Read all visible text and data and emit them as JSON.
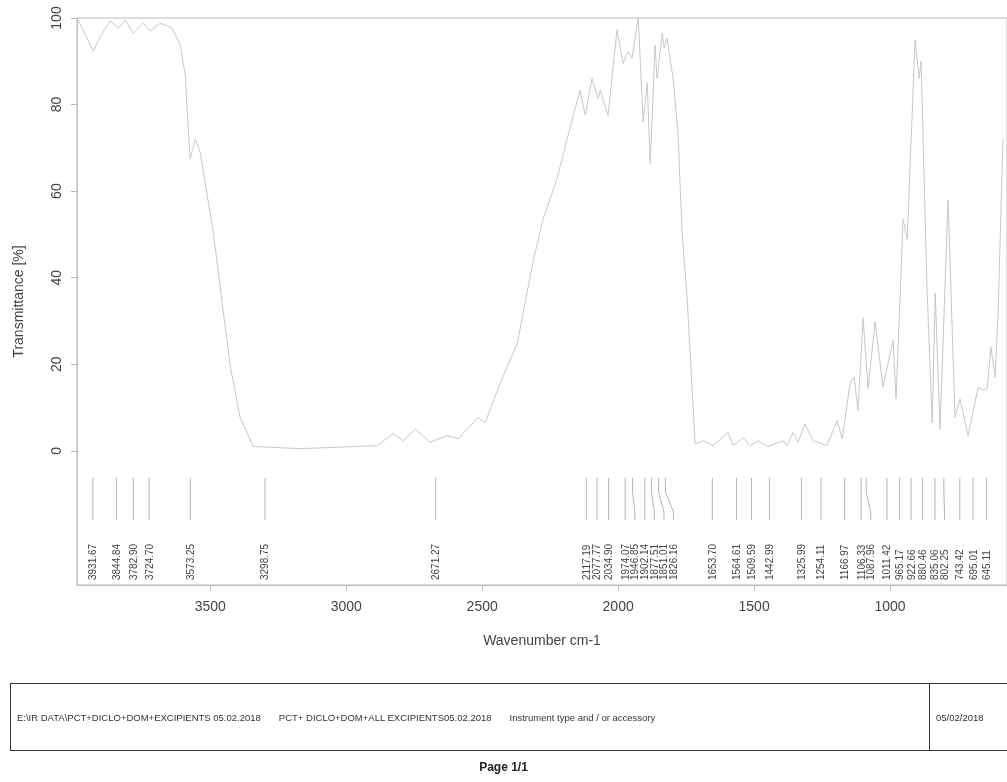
{
  "chart_data": {
    "type": "line",
    "xlabel": "Wavenumber cm-1",
    "ylabel": "Transmittance [%]",
    "xlim": [
      3990,
      570
    ],
    "xticks": [
      3500,
      3000,
      2500,
      2000,
      1500,
      1000
    ],
    "ylim": [
      -31,
      100
    ],
    "yticks": [
      0,
      20,
      40,
      60,
      80,
      100
    ],
    "grid": false,
    "marker": "none",
    "line_style": "solid",
    "series": [
      {
        "color": "#c8c8c8",
        "x": [
          3989,
          3930,
          3904,
          3868,
          3838,
          3812,
          3783,
          3746,
          3720,
          3684,
          3640,
          3610,
          3592,
          3574,
          3555,
          3537,
          3489,
          3426,
          3390,
          3342,
          3169,
          2886,
          2827,
          2790,
          2746,
          2691,
          2629,
          2588,
          2515,
          2489,
          2434,
          2397,
          2371,
          2312,
          2276,
          2224,
          2188,
          2140,
          2121,
          2096,
          2073,
          2066,
          2037,
          2004,
          1982,
          1963,
          1949,
          1926,
          1908,
          1893,
          1882,
          1864,
          1857,
          1838,
          1831,
          1820,
          1798,
          1780,
          1765,
          1746,
          1717,
          1687,
          1651,
          1596,
          1577,
          1540,
          1515,
          1485,
          1452,
          1393,
          1379,
          1357,
          1338,
          1313,
          1283,
          1232,
          1195,
          1176,
          1147,
          1132,
          1118,
          1099,
          1081,
          1055,
          1026,
          989,
          978,
          952,
          937,
          908,
          893,
          886,
          864,
          845,
          834,
          816,
          787,
          761,
          743,
          713,
          676,
          658,
          643,
          629,
          614,
          603,
          585
        ],
        "values": [
          100,
          92.3,
          95.8,
          99.3,
          97.7,
          99.5,
          96.5,
          98.8,
          97,
          98.8,
          97.7,
          93.7,
          86.8,
          67.4,
          72,
          69,
          50.5,
          19.3,
          7.7,
          1,
          0.5,
          1.2,
          4,
          2.3,
          5,
          2,
          3.5,
          2.8,
          7.7,
          6.5,
          15.6,
          21,
          24.8,
          44,
          53.5,
          63,
          72,
          83.3,
          77.5,
          86,
          81.4,
          83.3,
          77.5,
          97.3,
          89.5,
          92.3,
          90.7,
          100,
          76,
          85,
          66.3,
          93.7,
          86,
          96.5,
          93,
          95.3,
          86,
          73.7,
          50.5,
          35,
          1.6,
          2.3,
          1.2,
          4.2,
          1.2,
          3,
          1.2,
          2.3,
          1,
          2.3,
          1.2,
          4.2,
          2,
          6.2,
          2.3,
          1.2,
          7,
          2.8,
          15.6,
          17,
          9.3,
          30.7,
          14.4,
          29.8,
          14.7,
          25.6,
          12,
          53.5,
          48.8,
          95,
          86,
          90,
          37.2,
          6.5,
          36.5,
          5,
          58,
          7.7,
          12,
          3.5,
          14.7,
          14,
          14.4,
          24,
          17,
          31,
          72
        ]
      }
    ],
    "annotations": [
      "3931.67",
      "3844.84",
      "3782.90",
      "3724.70",
      "3573.25",
      "3298.75",
      "2671.27",
      "2117.19",
      "2077.77",
      "2034.90",
      "1974.07",
      "1946.85",
      "1902.14",
      "1877.51",
      "1851.01",
      "1826.16",
      "1653.70",
      "1564.61",
      "1509.59",
      "1442.99",
      "1325.99",
      "1254.11",
      "1166.97",
      "1106.33",
      "1087.96",
      "1011.42",
      "965.17",
      "922.66",
      "880.46",
      "835.06",
      "802.25",
      "743.42",
      "695.01",
      "645.11",
      "E:\\IR DATA\\PCT+DICLO+DOM+EXCIPIENTS 05.02.2018",
      "PCT+ DICLO+DOM+ALL EXCIPIENTS05.02.2018",
      "Instrument type and / or accessory",
      "05/02/2018",
      "Page 1/1"
    ]
  }
}
